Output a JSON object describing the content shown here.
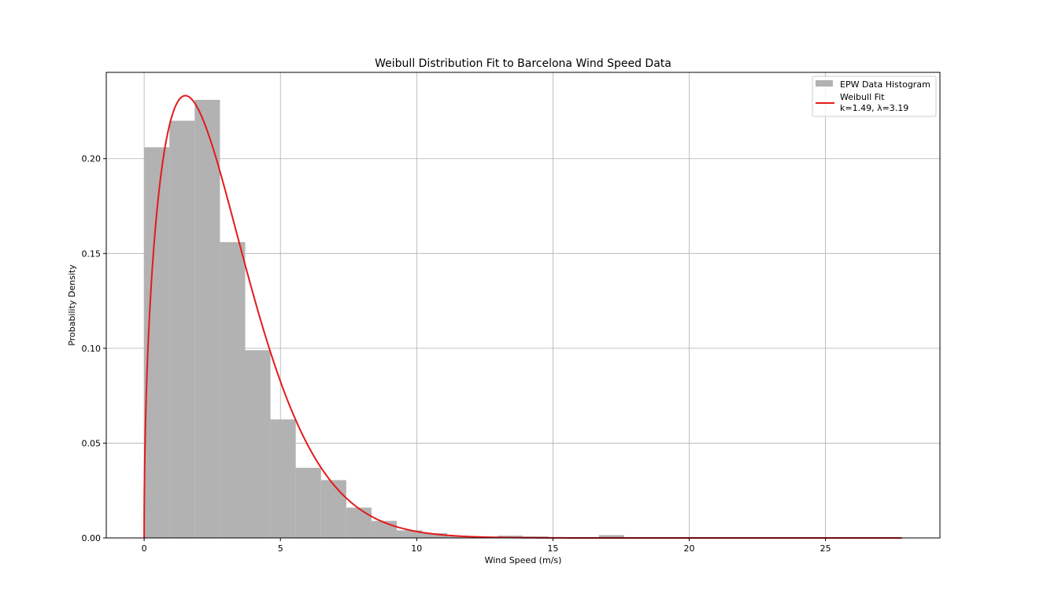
{
  "chart_data": {
    "type": "bar",
    "title": "Weibull Distribution Fit to Barcelona Wind Speed Data",
    "xlabel": "Wind Speed (m/s)",
    "ylabel": "Probability Density",
    "xlim": [
      -1.39,
      29.2
    ],
    "ylim": [
      0,
      0.2455
    ],
    "xticks": [
      0,
      5,
      10,
      15,
      20,
      25
    ],
    "xtick_labels": [
      "0",
      "5",
      "10",
      "15",
      "20",
      "25"
    ],
    "yticks": [
      0,
      0.05,
      0.1,
      0.15,
      0.2
    ],
    "ytick_labels": [
      "0.00",
      "0.05",
      "0.10",
      "0.15",
      "0.20"
    ],
    "grid": true,
    "legend_position": "top-right",
    "colors": {
      "histogram": "#b2b2b2",
      "fit": "#e31a1c",
      "grid": "#b0b0b0"
    },
    "histogram": {
      "name": "EPW Data Histogram",
      "bin_width": 0.927,
      "bin_edges_start": 0,
      "values": [
        0.206,
        0.22,
        0.231,
        0.156,
        0.099,
        0.0625,
        0.037,
        0.0305,
        0.016,
        0.009,
        0.004,
        0.0025,
        0.0008,
        0.0005,
        0.0012,
        0.0008,
        0.0004,
        0.0003,
        0.0015,
        0.0001
      ]
    },
    "fit": {
      "name_lines": [
        "Weibull Fit",
        "k=1.49, λ=3.19"
      ],
      "k": 1.49,
      "lambda": 3.19,
      "x_range": [
        0,
        27.8
      ]
    }
  }
}
